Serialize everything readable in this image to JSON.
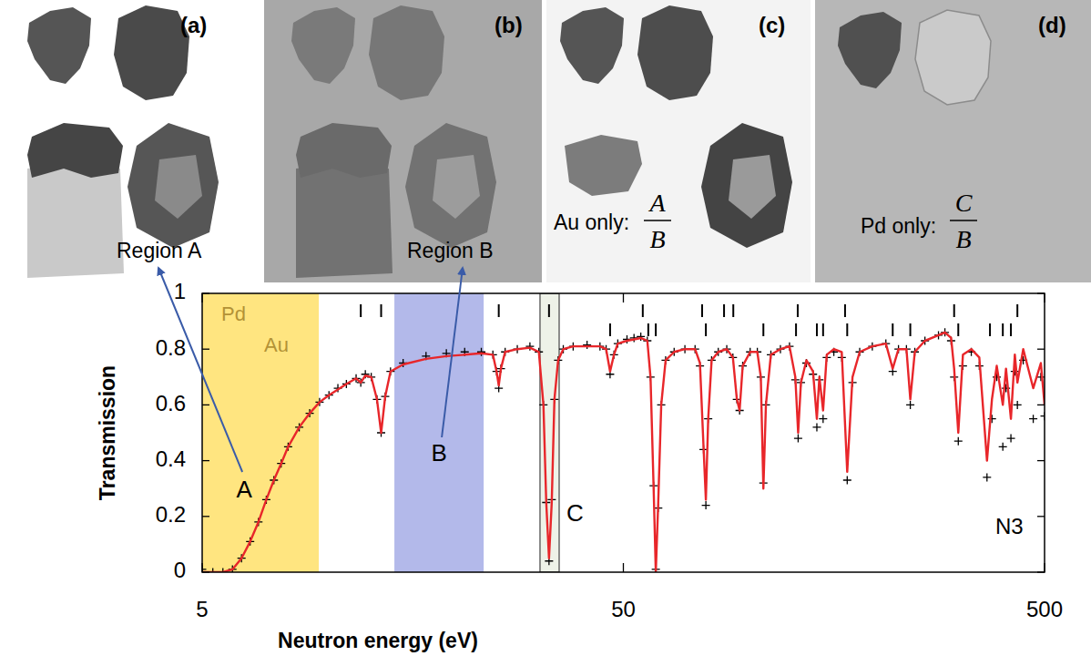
{
  "panels": [
    {
      "letter": "(a)",
      "label": "Region A"
    },
    {
      "letter": "(b)",
      "label": "Region B"
    },
    {
      "letter": "(c)",
      "caption": "Au only:",
      "numerator": "A",
      "denominator": "B"
    },
    {
      "letter": "(d)",
      "caption": "Pd only:",
      "numerator": "C",
      "denominator": "B"
    }
  ],
  "chart_data": {
    "type": "line",
    "x_label": "Neutron energy (eV)",
    "y_label": "Transmission",
    "log": "x",
    "grid": false,
    "xlim": [
      5,
      500
    ],
    "xticks": [
      5,
      50,
      500
    ],
    "ylim": [
      0,
      1
    ],
    "yticks": [
      0,
      0.2,
      0.4,
      0.6,
      0.8,
      1
    ],
    "regions": [
      {
        "label": "A",
        "from": 5,
        "to": 9.46,
        "color": "#ffe580",
        "elements": [
          "Pd",
          "Au"
        ]
      },
      {
        "label": "B",
        "from": 14.3,
        "to": 23.3,
        "color": "#b3b9ea"
      },
      {
        "label": "C",
        "from": 31.7,
        "to": 35.2,
        "color": "#eef2e8"
      }
    ],
    "annotation": "N3",
    "resonances": [
      [
        11.9,
        13.3,
        25.3,
        33.3,
        55.6,
        76.9,
        86.7,
        91.2,
        129.7,
        168,
        305,
        431
      ],
      [
        46.5,
        57.3,
        59.7,
        78.5,
        107.5,
        128.5,
        144,
        149,
        170,
        218,
        240,
        312,
        371,
        398,
        416
      ]
    ],
    "x": [
      5,
      5.3,
      5.6,
      5.9,
      6.2,
      6.5,
      6.8,
      7.1,
      7.4,
      7.7,
      8,
      8.5,
      9,
      9.5,
      10,
      10.5,
      11,
      11.6,
      11.9,
      12.2,
      12.6,
      13,
      13.3,
      13.6,
      14,
      15,
      17,
      19,
      21,
      23,
      24.5,
      25,
      25.3,
      25.6,
      26.2,
      28,
      30,
      31.5,
      32.3,
      32.8,
      33.3,
      33.8,
      34.3,
      35,
      36,
      38,
      41,
      44,
      45.5,
      46.5,
      47.5,
      48.5,
      51,
      53,
      55,
      57,
      58,
      59,
      59.7,
      60.5,
      61.5,
      63,
      66,
      70,
      74,
      76,
      77.5,
      78.5,
      79.5,
      81,
      84,
      88,
      91,
      93,
      94.4,
      96,
      100,
      104,
      106,
      107.5,
      109,
      112,
      118,
      124,
      128,
      130,
      132,
      136,
      141,
      144,
      146,
      149,
      152,
      158,
      165,
      170,
      175,
      182,
      195,
      210,
      218,
      225,
      235,
      240,
      246,
      260,
      280,
      290,
      300,
      305,
      312,
      320,
      335,
      350,
      365,
      375,
      385,
      398,
      405,
      416,
      425,
      431,
      445,
      470,
      490,
      500
    ],
    "series": [
      {
        "type": "scatter",
        "color": "#000000",
        "marker": "plus",
        "values": [
          0.01,
          0,
          0,
          0.01,
          0.05,
          0.11,
          0.18,
          0.26,
          0.33,
          0.39,
          0.45,
          0.52,
          0.57,
          0.61,
          0.635,
          0.66,
          0.675,
          0.695,
          0.68,
          0.71,
          0.7,
          0.62,
          0.5,
          0.63,
          0.72,
          0.75,
          0.775,
          0.785,
          0.79,
          0.79,
          0.78,
          0.72,
          0.66,
          0.73,
          0.79,
          0.8,
          0.81,
          0.79,
          0.6,
          0.25,
          0.04,
          0.26,
          0.62,
          0.76,
          0.8,
          0.81,
          0.815,
          0.81,
          0.8,
          0.71,
          0.78,
          0.82,
          0.835,
          0.84,
          0.845,
          0.83,
          0.7,
          0.31,
          0.01,
          0.23,
          0.6,
          0.76,
          0.79,
          0.8,
          0.8,
          0.74,
          0.44,
          0.24,
          0.55,
          0.76,
          0.79,
          0.8,
          0.77,
          0.62,
          0.58,
          0.74,
          0.79,
          0.79,
          0.7,
          0.32,
          0.6,
          0.78,
          0.8,
          0.81,
          0.69,
          0.48,
          0.68,
          0.75,
          0.71,
          0.52,
          0.69,
          0.55,
          0.77,
          0.79,
          0.77,
          0.33,
          0.68,
          0.79,
          0.81,
          0.82,
          0.72,
          0.8,
          0.8,
          0.6,
          0.79,
          0.83,
          0.85,
          0.86,
          0.83,
          0.7,
          0.47,
          0.74,
          0.79,
          0.74,
          0.34,
          0.55,
          0.7,
          0.45,
          0.66,
          0.48,
          0.72,
          0.6,
          0.76,
          0.55,
          0.7,
          0.56
        ]
      },
      {
        "type": "line",
        "color": "#e8262a",
        "line_style": "solid",
        "values": [
          0,
          0,
          0,
          0.01,
          0.05,
          0.11,
          0.18,
          0.26,
          0.33,
          0.39,
          0.45,
          0.52,
          0.57,
          0.61,
          0.635,
          0.655,
          0.675,
          0.695,
          0.68,
          0.705,
          0.7,
          0.62,
          0.5,
          0.63,
          0.72,
          0.745,
          0.765,
          0.775,
          0.78,
          0.785,
          0.78,
          0.72,
          0.67,
          0.73,
          0.79,
          0.8,
          0.805,
          0.79,
          0.6,
          0.25,
          0.05,
          0.25,
          0.62,
          0.76,
          0.8,
          0.81,
          0.81,
          0.81,
          0.8,
          0.72,
          0.78,
          0.82,
          0.83,
          0.835,
          0.84,
          0.83,
          0.7,
          0.3,
          0,
          0.25,
          0.6,
          0.76,
          0.79,
          0.8,
          0.8,
          0.75,
          0.45,
          0.26,
          0.55,
          0.76,
          0.79,
          0.8,
          0.77,
          0.62,
          0.58,
          0.74,
          0.79,
          0.79,
          0.7,
          0.3,
          0.6,
          0.78,
          0.8,
          0.81,
          0.7,
          0.5,
          0.68,
          0.76,
          0.72,
          0.55,
          0.7,
          0.58,
          0.78,
          0.8,
          0.79,
          0.36,
          0.7,
          0.79,
          0.81,
          0.82,
          0.73,
          0.8,
          0.8,
          0.62,
          0.79,
          0.83,
          0.85,
          0.86,
          0.84,
          0.73,
          0.5,
          0.78,
          0.8,
          0.77,
          0.4,
          0.62,
          0.74,
          0.6,
          0.73,
          0.55,
          0.78,
          0.68,
          0.8,
          0.66,
          0.75,
          0.6
        ]
      }
    ]
  }
}
